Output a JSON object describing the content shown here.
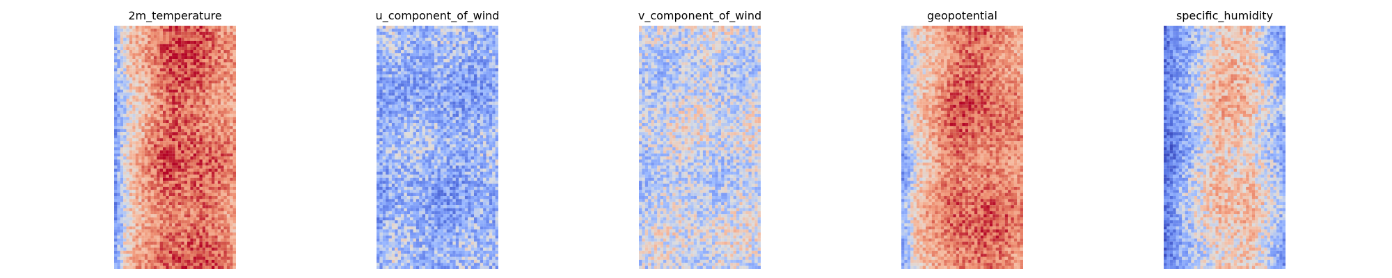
{
  "chart_data": {
    "type": "heatmap",
    "colormap": "coolwarm",
    "axes": "off",
    "grid": false,
    "colorbar": false,
    "panels": [
      {
        "title": "2m_temperature",
        "grid_size": [
          40,
          80
        ],
        "description_profile": {
          "left_edge_value": 0.28,
          "left_band_value": 0.6,
          "center_value": 0.86,
          "right_edge_value": 0.72,
          "noise": 0.14
        }
      },
      {
        "title": "u_component_of_wind",
        "grid_size": [
          40,
          80
        ],
        "description_profile": {
          "left_edge_value": 0.3,
          "left_band_value": 0.36,
          "center_value": 0.32,
          "right_edge_value": 0.34,
          "noise": 0.17
        }
      },
      {
        "title": "v_component_of_wind",
        "grid_size": [
          40,
          80
        ],
        "description_profile": {
          "left_edge_value": 0.42,
          "left_band_value": 0.45,
          "center_value": 0.46,
          "right_edge_value": 0.46,
          "noise": 0.15
        }
      },
      {
        "title": "geopotential",
        "grid_size": [
          40,
          80
        ],
        "description_profile": {
          "left_edge_value": 0.3,
          "left_band_value": 0.58,
          "center_value": 0.84,
          "right_edge_value": 0.74,
          "noise": 0.13
        }
      },
      {
        "title": "specific_humidity",
        "grid_size": [
          40,
          80
        ],
        "description_profile": {
          "left_edge_value": 0.14,
          "left_band_value": 0.3,
          "center_value": 0.62,
          "right_edge_value": 0.3,
          "noise": 0.15
        }
      }
    ]
  }
}
